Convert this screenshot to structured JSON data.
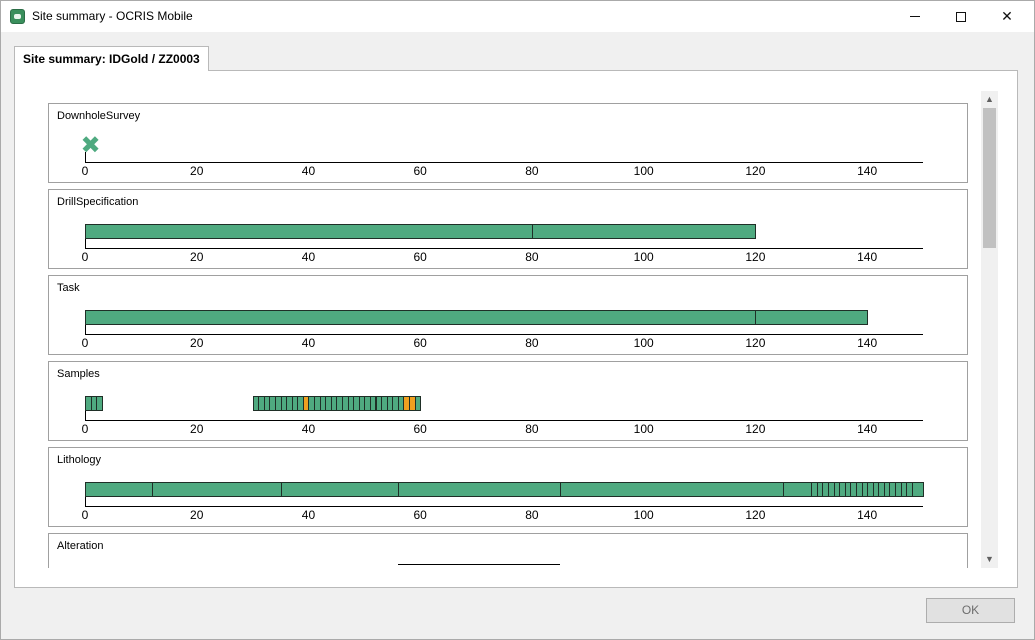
{
  "window": {
    "title": "Site summary - OCRIS Mobile",
    "minimize_icon": "minimize-icon",
    "maximize_icon": "maximize-icon",
    "close_icon": "close-icon"
  },
  "tab": {
    "label": "Site summary: IDGold / ZZ0003"
  },
  "axis": {
    "min": 0,
    "max": 150,
    "ticks": [
      0,
      20,
      40,
      60,
      80,
      100,
      120,
      140
    ]
  },
  "colors": {
    "interval": "#4faa80",
    "highlight": "#f0a020",
    "border": "#1f2f27"
  },
  "tracks": [
    {
      "label": "DownholeSurvey",
      "markers": [
        1
      ]
    },
    {
      "label": "DrillSpecification",
      "intervals": [
        [
          0,
          80
        ],
        [
          80,
          120
        ]
      ]
    },
    {
      "label": "Task",
      "intervals": [
        [
          0,
          120
        ],
        [
          120,
          140
        ]
      ]
    },
    {
      "label": "Samples",
      "intervals": [
        [
          0,
          1
        ],
        [
          1,
          2
        ],
        [
          2,
          3
        ],
        [
          30,
          31
        ],
        [
          31,
          32
        ],
        [
          32,
          33
        ],
        [
          33,
          34
        ],
        [
          34,
          35
        ],
        [
          35,
          36
        ],
        [
          36,
          37
        ],
        [
          37,
          38
        ],
        [
          38,
          39
        ],
        [
          39,
          40
        ],
        [
          40,
          41
        ],
        [
          41,
          42
        ],
        [
          42,
          43
        ],
        [
          43,
          44
        ],
        [
          44,
          45
        ],
        [
          45,
          46
        ],
        [
          46,
          47
        ],
        [
          47,
          48
        ],
        [
          48,
          49
        ],
        [
          49,
          50
        ],
        [
          50,
          51
        ],
        [
          51,
          52
        ],
        [
          52,
          53
        ],
        [
          53,
          54
        ],
        [
          54,
          55
        ],
        [
          55,
          56
        ],
        [
          56,
          57
        ],
        [
          57,
          58
        ],
        [
          58,
          59
        ],
        [
          59,
          60
        ]
      ],
      "highlighted": [
        [
          39,
          40
        ],
        [
          57,
          58
        ],
        [
          58,
          59
        ]
      ]
    },
    {
      "label": "Lithology",
      "intervals": [
        [
          0,
          12
        ],
        [
          12,
          35
        ],
        [
          35,
          56
        ],
        [
          56,
          85
        ],
        [
          85,
          125
        ],
        [
          125,
          130
        ],
        [
          130,
          131
        ],
        [
          131,
          132
        ],
        [
          132,
          133
        ],
        [
          133,
          134
        ],
        [
          134,
          135
        ],
        [
          135,
          136
        ],
        [
          136,
          137
        ],
        [
          137,
          138
        ],
        [
          138,
          139
        ],
        [
          139,
          140
        ],
        [
          140,
          141
        ],
        [
          141,
          142
        ],
        [
          142,
          143
        ],
        [
          143,
          144
        ],
        [
          144,
          145
        ],
        [
          145,
          146
        ],
        [
          146,
          147
        ],
        [
          147,
          148
        ],
        [
          148,
          150
        ]
      ]
    },
    {
      "label": "Alteration",
      "lines": [
        [
          56,
          85
        ]
      ]
    }
  ],
  "buttons": {
    "ok_label": "OK"
  }
}
